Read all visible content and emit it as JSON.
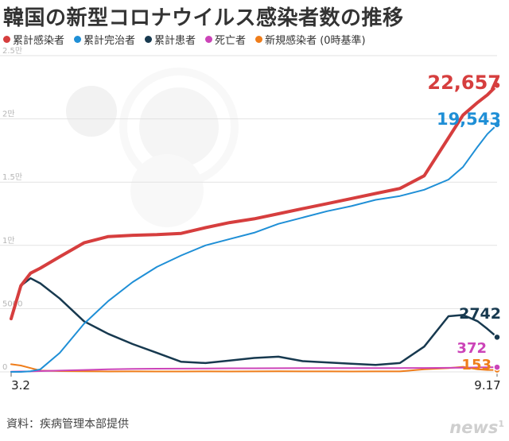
{
  "chart_data": {
    "type": "line",
    "title": "韓国の新型コロナウイルス感染者数の推移",
    "x_labels": [
      "3.2",
      "9.17"
    ],
    "y_ticks": [
      {
        "value": 0,
        "label": "0"
      },
      {
        "value": 5000,
        "label": "5000"
      },
      {
        "value": 10000,
        "label": "1만"
      },
      {
        "value": 15000,
        "label": "1.5만"
      },
      {
        "value": 20000,
        "label": "2만"
      },
      {
        "value": 25000,
        "label": "2.5만"
      }
    ],
    "ylim": [
      0,
      25000
    ],
    "grid": true,
    "legend_position": "top-left",
    "x_positions": [
      0,
      0.02,
      0.04,
      0.06,
      0.1,
      0.15,
      0.2,
      0.25,
      0.3,
      0.35,
      0.4,
      0.45,
      0.5,
      0.55,
      0.6,
      0.65,
      0.7,
      0.75,
      0.8,
      0.85,
      0.9,
      0.93,
      0.96,
      0.98,
      1.0
    ],
    "series": [
      {
        "name": "累計感染者",
        "color": "#d63e3e",
        "label": "22,657",
        "values": [
          4200,
          6800,
          7800,
          8200,
          9100,
          10200,
          10700,
          10800,
          10850,
          10950,
          11400,
          11800,
          12100,
          12500,
          12900,
          13300,
          13700,
          14100,
          14500,
          15500,
          18500,
          20300,
          21300,
          21900,
          22657
        ]
      },
      {
        "name": "累計完治者",
        "color": "#1f8fd6",
        "label": "19,543",
        "values": [
          0,
          0,
          50,
          200,
          1500,
          3800,
          5600,
          7100,
          8300,
          9200,
          10000,
          10500,
          11000,
          11700,
          12200,
          12700,
          13100,
          13600,
          13900,
          14400,
          15200,
          16200,
          17800,
          18800,
          19543
        ]
      },
      {
        "name": "累計患者",
        "color": "#17394f",
        "label": "2742",
        "values": [
          4200,
          6800,
          7400,
          7000,
          5800,
          4000,
          3000,
          2200,
          1500,
          800,
          700,
          900,
          1100,
          1200,
          850,
          750,
          650,
          550,
          700,
          2000,
          4400,
          4500,
          4000,
          3400,
          2742
        ]
      },
      {
        "name": "死亡者",
        "color": "#cc44b8",
        "label": "372",
        "values": [
          20,
          30,
          40,
          60,
          100,
          150,
          200,
          230,
          250,
          260,
          270,
          280,
          285,
          290,
          295,
          298,
          300,
          302,
          304,
          306,
          320,
          335,
          350,
          362,
          372
        ]
      },
      {
        "name": "新規感染者 (0時基準)",
        "color": "#ef7d1a",
        "label": "153",
        "values": [
          600,
          500,
          300,
          100,
          60,
          50,
          30,
          40,
          30,
          30,
          40,
          30,
          40,
          50,
          40,
          40,
          30,
          40,
          40,
          200,
          300,
          400,
          200,
          150,
          153
        ]
      }
    ]
  },
  "source": "資料：疾病管理本部提供",
  "logo": {
    "text": "news",
    "mark": "1"
  }
}
